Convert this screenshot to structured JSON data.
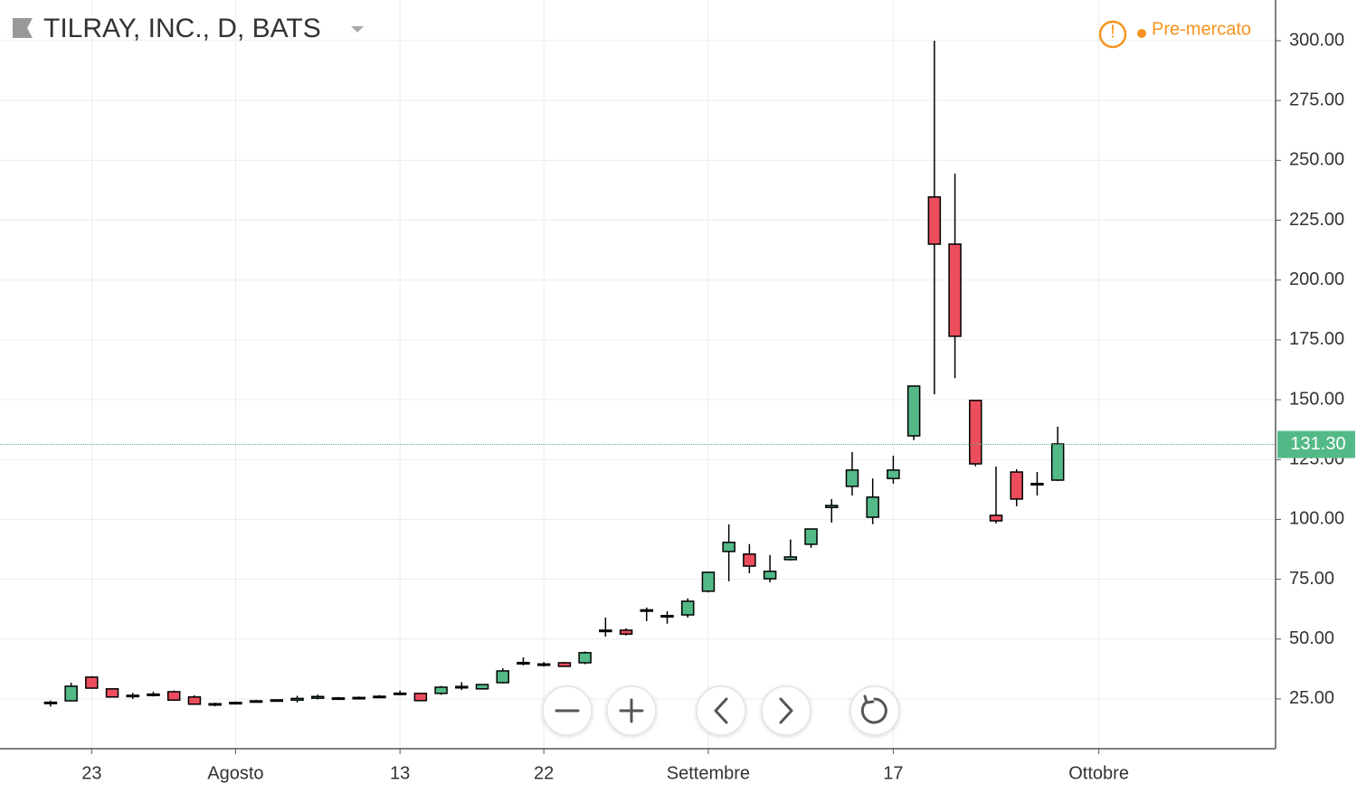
{
  "chart_data": {
    "type": "candlestick",
    "title": "TILRAY, INC., D, BATS",
    "status": "Pre-mercato",
    "open": [
      23.3,
      24.2,
      34.1,
      29.2,
      26.5,
      26.8,
      28,
      25.8,
      23,
      23.4,
      24,
      24.6,
      24.5,
      25.3,
      25.4,
      25.5,
      26,
      27,
      27.3,
      27.3,
      29.6,
      29.2,
      31.8,
      40,
      39.6,
      40.1,
      40.1,
      53.3,
      53.7,
      61.8,
      59.7,
      60.1,
      70,
      86.6,
      85.5,
      75.2,
      83.2,
      89.6,
      105,
      113.8,
      100.9,
      117.1,
      134.9,
      234.7,
      215,
      149.7,
      101.7,
      119.8,
      114.6,
      116.4
    ],
    "high": [
      24.3,
      31.8,
      34.5,
      29.5,
      27.5,
      28,
      28.5,
      26.5,
      23.4,
      23.9,
      24.6,
      24.8,
      26.3,
      26.8,
      25.8,
      26,
      26.6,
      28.5,
      27.6,
      30.4,
      32,
      31,
      37.8,
      42.4,
      40.4,
      40.5,
      44.8,
      59,
      54.5,
      63.2,
      61.6,
      67,
      78,
      97.9,
      89.7,
      85.1,
      91.6,
      96,
      108.5,
      128.1,
      117.1,
      126.6,
      155.7,
      300,
      244.5,
      149.7,
      122.1,
      121,
      119.8,
      138.7
    ],
    "low": [
      21.8,
      24,
      29.5,
      25.8,
      25,
      26,
      24.2,
      22.7,
      21.9,
      23.1,
      23.8,
      24.3,
      23.5,
      24.8,
      24.9,
      25,
      25.6,
      26.5,
      24.2,
      26.7,
      28.7,
      28.9,
      31.5,
      39,
      38.5,
      38.6,
      39.5,
      51,
      51.5,
      57.5,
      56.4,
      59,
      69.5,
      74.1,
      77.5,
      73.7,
      82.8,
      88.1,
      98.7,
      110,
      98,
      114.9,
      133.1,
      152.3,
      159,
      122.2,
      98.3,
      105.5,
      110,
      116
    ],
    "close": [
      23.6,
      30.3,
      29.5,
      25.8,
      26.3,
      27,
      24.5,
      22.8,
      22.5,
      23.5,
      24.2,
      24.5,
      25.2,
      26,
      25.3,
      25.6,
      26.1,
      27.4,
      24.3,
      29.9,
      30.2,
      31,
      36.7,
      40.2,
      39.4,
      38.6,
      44.3,
      53.7,
      52.1,
      62.2,
      59.8,
      65.8,
      77.9,
      90.4,
      80.5,
      78.3,
      84.3,
      96,
      105.8,
      120.6,
      109.3,
      120.6,
      155.7,
      215,
      176.5,
      123.2,
      99.4,
      108.5,
      115,
      131.5
    ],
    "up_color": "#53b987",
    "down_color": "#eb4d5c",
    "last_price": {
      "value": 131.3,
      "label": "131.30"
    },
    "xlim": [
      -2.46,
      59.6
    ],
    "xticks": [
      {
        "value": 2,
        "label": "23"
      },
      {
        "value": 9,
        "label": "Agosto"
      },
      {
        "value": 17,
        "label": "13"
      },
      {
        "value": 24,
        "label": "22"
      },
      {
        "value": 32,
        "label": "Settembre"
      },
      {
        "value": 41,
        "label": "17"
      },
      {
        "value": 51,
        "label": "Ottobre"
      }
    ],
    "ylim": [
      4.2,
      317
    ],
    "yticks": [
      {
        "value": 25,
        "label": "25.00"
      },
      {
        "value": 50,
        "label": "50.00"
      },
      {
        "value": 75,
        "label": "75.00"
      },
      {
        "value": 100,
        "label": "100.00"
      },
      {
        "value": 125,
        "label": "125.00"
      },
      {
        "value": 150,
        "label": "150.00"
      },
      {
        "value": 175,
        "label": "175.00"
      },
      {
        "value": 200,
        "label": "200.00"
      },
      {
        "value": 225,
        "label": "225.00"
      },
      {
        "value": 250,
        "label": "250.00"
      },
      {
        "value": 275,
        "label": "275.00"
      },
      {
        "value": 300,
        "label": "300.00"
      }
    ],
    "grid": true
  }
}
